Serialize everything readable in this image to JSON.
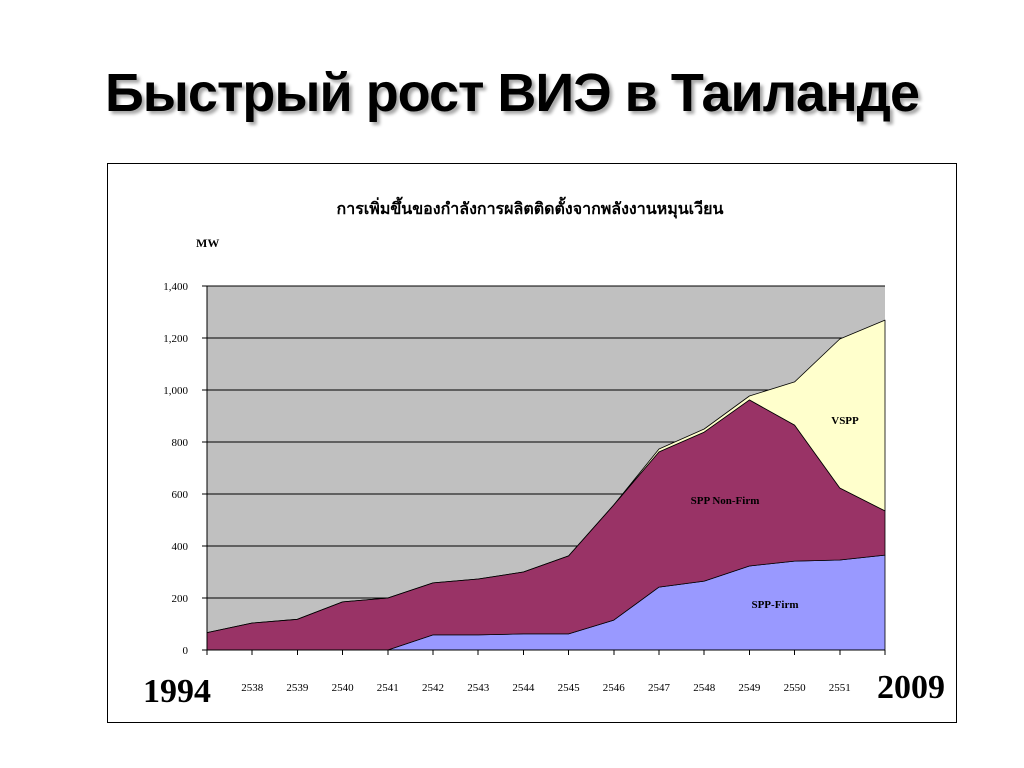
{
  "slide": {
    "title": "Быстрый рост ВИЭ в Таиланде"
  },
  "chart_data": {
    "type": "area",
    "stacked": true,
    "title": "การเพิ่มขึ้นของกำลังการผลิตติดตั้งจากพลังงานหมุนเวียน",
    "xlabel": "",
    "ylabel": "MW",
    "categories": [
      "1994",
      "2538",
      "2539",
      "2540",
      "2541",
      "2542",
      "2543",
      "2544",
      "2545",
      "2546",
      "2547",
      "2548",
      "2549",
      "2550",
      "2551",
      "2009"
    ],
    "ylim": [
      0,
      1400
    ],
    "yticks": [
      0,
      200,
      400,
      600,
      800,
      1000,
      1200,
      1400
    ],
    "ytick_labels": [
      "0",
      "200",
      "400",
      "600",
      "800",
      "1,000",
      "1,200",
      "1,400"
    ],
    "grid": true,
    "legend": false,
    "plot_background": "#C0C0C0",
    "series": [
      {
        "name": "SPP-Firm",
        "color": "#9999FF",
        "values": [
          0,
          0,
          0,
          0,
          0,
          58,
          58,
          62,
          62,
          115,
          242,
          265,
          323,
          342,
          346,
          365
        ]
      },
      {
        "name": "SPP Non-Firm",
        "color": "#993366",
        "values": [
          67,
          104,
          118,
          185,
          200,
          200,
          215,
          238,
          300,
          443,
          520,
          573,
          639,
          523,
          277,
          170
        ]
      },
      {
        "name": "VSPP",
        "color": "#FFFFCC",
        "values": [
          0,
          0,
          0,
          0,
          0,
          0,
          0,
          0,
          0,
          0,
          11,
          12,
          15,
          166,
          573,
          734
        ]
      }
    ]
  }
}
